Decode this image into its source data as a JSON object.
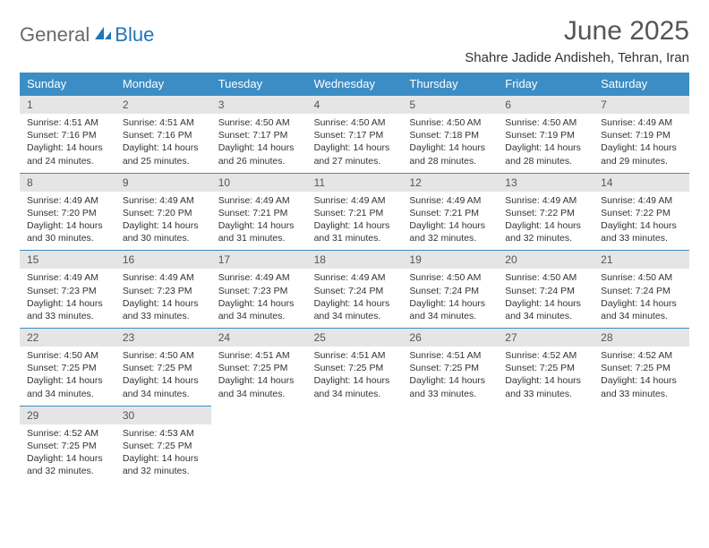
{
  "logo": {
    "text1": "General",
    "text2": "Blue"
  },
  "title": "June 2025",
  "subtitle": "Shahre Jadide Andisheh, Tehran, Iran",
  "colors": {
    "header_bg": "#3c8dc5",
    "header_text": "#ffffff",
    "daynum_bg": "#e5e5e5",
    "border": "#3c8dc5",
    "logo_gray": "#6a6a6a",
    "logo_blue": "#1f77b4"
  },
  "typography": {
    "title_fontsize": 30,
    "subtitle_fontsize": 15,
    "dayheader_fontsize": 13,
    "daynum_fontsize": 12,
    "body_fontsize": 10.5
  },
  "day_names": [
    "Sunday",
    "Monday",
    "Tuesday",
    "Wednesday",
    "Thursday",
    "Friday",
    "Saturday"
  ],
  "weeks": [
    [
      {
        "n": "1",
        "sr": "4:51 AM",
        "ss": "7:16 PM",
        "dl": "14 hours and 24 minutes."
      },
      {
        "n": "2",
        "sr": "4:51 AM",
        "ss": "7:16 PM",
        "dl": "14 hours and 25 minutes."
      },
      {
        "n": "3",
        "sr": "4:50 AM",
        "ss": "7:17 PM",
        "dl": "14 hours and 26 minutes."
      },
      {
        "n": "4",
        "sr": "4:50 AM",
        "ss": "7:17 PM",
        "dl": "14 hours and 27 minutes."
      },
      {
        "n": "5",
        "sr": "4:50 AM",
        "ss": "7:18 PM",
        "dl": "14 hours and 28 minutes."
      },
      {
        "n": "6",
        "sr": "4:50 AM",
        "ss": "7:19 PM",
        "dl": "14 hours and 28 minutes."
      },
      {
        "n": "7",
        "sr": "4:49 AM",
        "ss": "7:19 PM",
        "dl": "14 hours and 29 minutes."
      }
    ],
    [
      {
        "n": "8",
        "sr": "4:49 AM",
        "ss": "7:20 PM",
        "dl": "14 hours and 30 minutes."
      },
      {
        "n": "9",
        "sr": "4:49 AM",
        "ss": "7:20 PM",
        "dl": "14 hours and 30 minutes."
      },
      {
        "n": "10",
        "sr": "4:49 AM",
        "ss": "7:21 PM",
        "dl": "14 hours and 31 minutes."
      },
      {
        "n": "11",
        "sr": "4:49 AM",
        "ss": "7:21 PM",
        "dl": "14 hours and 31 minutes."
      },
      {
        "n": "12",
        "sr": "4:49 AM",
        "ss": "7:21 PM",
        "dl": "14 hours and 32 minutes."
      },
      {
        "n": "13",
        "sr": "4:49 AM",
        "ss": "7:22 PM",
        "dl": "14 hours and 32 minutes."
      },
      {
        "n": "14",
        "sr": "4:49 AM",
        "ss": "7:22 PM",
        "dl": "14 hours and 33 minutes."
      }
    ],
    [
      {
        "n": "15",
        "sr": "4:49 AM",
        "ss": "7:23 PM",
        "dl": "14 hours and 33 minutes."
      },
      {
        "n": "16",
        "sr": "4:49 AM",
        "ss": "7:23 PM",
        "dl": "14 hours and 33 minutes."
      },
      {
        "n": "17",
        "sr": "4:49 AM",
        "ss": "7:23 PM",
        "dl": "14 hours and 34 minutes."
      },
      {
        "n": "18",
        "sr": "4:49 AM",
        "ss": "7:24 PM",
        "dl": "14 hours and 34 minutes."
      },
      {
        "n": "19",
        "sr": "4:50 AM",
        "ss": "7:24 PM",
        "dl": "14 hours and 34 minutes."
      },
      {
        "n": "20",
        "sr": "4:50 AM",
        "ss": "7:24 PM",
        "dl": "14 hours and 34 minutes."
      },
      {
        "n": "21",
        "sr": "4:50 AM",
        "ss": "7:24 PM",
        "dl": "14 hours and 34 minutes."
      }
    ],
    [
      {
        "n": "22",
        "sr": "4:50 AM",
        "ss": "7:25 PM",
        "dl": "14 hours and 34 minutes."
      },
      {
        "n": "23",
        "sr": "4:50 AM",
        "ss": "7:25 PM",
        "dl": "14 hours and 34 minutes."
      },
      {
        "n": "24",
        "sr": "4:51 AM",
        "ss": "7:25 PM",
        "dl": "14 hours and 34 minutes."
      },
      {
        "n": "25",
        "sr": "4:51 AM",
        "ss": "7:25 PM",
        "dl": "14 hours and 34 minutes."
      },
      {
        "n": "26",
        "sr": "4:51 AM",
        "ss": "7:25 PM",
        "dl": "14 hours and 33 minutes."
      },
      {
        "n": "27",
        "sr": "4:52 AM",
        "ss": "7:25 PM",
        "dl": "14 hours and 33 minutes."
      },
      {
        "n": "28",
        "sr": "4:52 AM",
        "ss": "7:25 PM",
        "dl": "14 hours and 33 minutes."
      }
    ],
    [
      {
        "n": "29",
        "sr": "4:52 AM",
        "ss": "7:25 PM",
        "dl": "14 hours and 32 minutes."
      },
      {
        "n": "30",
        "sr": "4:53 AM",
        "ss": "7:25 PM",
        "dl": "14 hours and 32 minutes."
      },
      null,
      null,
      null,
      null,
      null
    ]
  ],
  "labels": {
    "sunrise": "Sunrise:",
    "sunset": "Sunset:",
    "daylight": "Daylight:"
  }
}
